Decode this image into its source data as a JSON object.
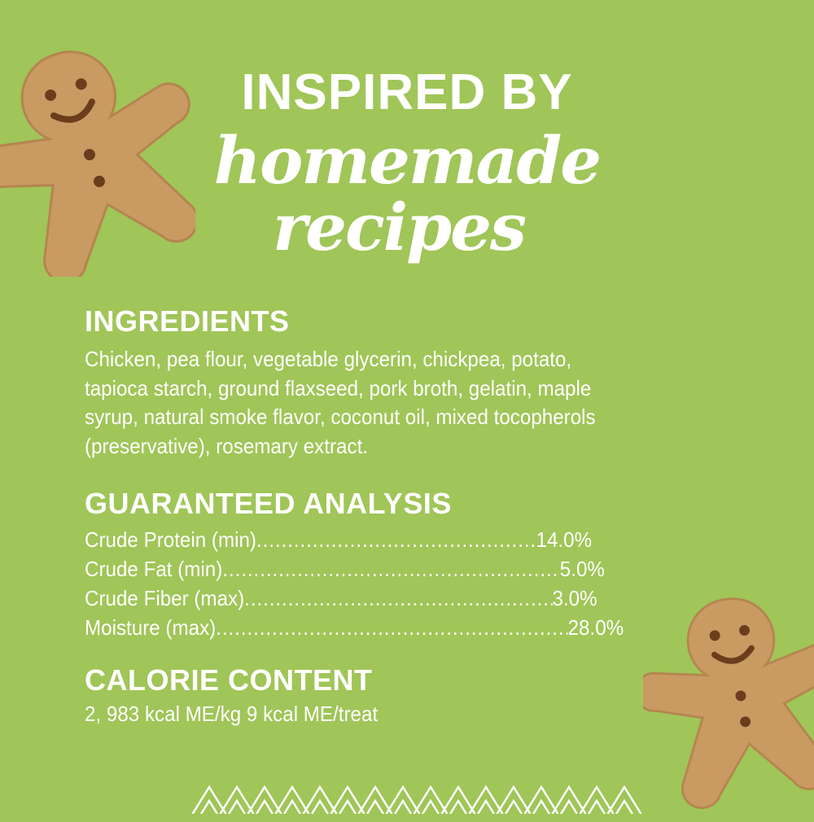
{
  "header": {
    "line1": "INSPIRED BY",
    "line2": "homemade",
    "line3": "recipes"
  },
  "ingredients": {
    "heading": "INGREDIENTS",
    "lines": [
      "Chicken, pea flour, vegetable glycerin, chickpea, potato,",
      "tapioca starch, ground flaxseed, pork broth, gelatin, maple",
      "syrup, natural smoke flavor, coconut oil, mixed tocopherols",
      "(preservative), rosemary extract."
    ]
  },
  "analysis": {
    "heading": "GUARANTEED ANALYSIS",
    "rows": [
      {
        "label": "Crude Protein (min)",
        "value": "14.0%"
      },
      {
        "label": "Crude Fat (min)",
        "value": "5.0%"
      },
      {
        "label": "Crude Fiber (max)",
        "value": "3.0%"
      },
      {
        "label": "Moisture (max)",
        "value": "28.0%"
      }
    ]
  },
  "calories": {
    "heading": "CALORIE CONTENT",
    "text": "2, 983 kcal ME/kg 9 kcal ME/treat"
  },
  "colors": {
    "background": "#a0c558",
    "text": "#ffffff",
    "cookie": "#c99a62"
  },
  "decor": {
    "cookie_icon": "gingerbread-man-cookie",
    "border": "zigzag-pattern"
  }
}
